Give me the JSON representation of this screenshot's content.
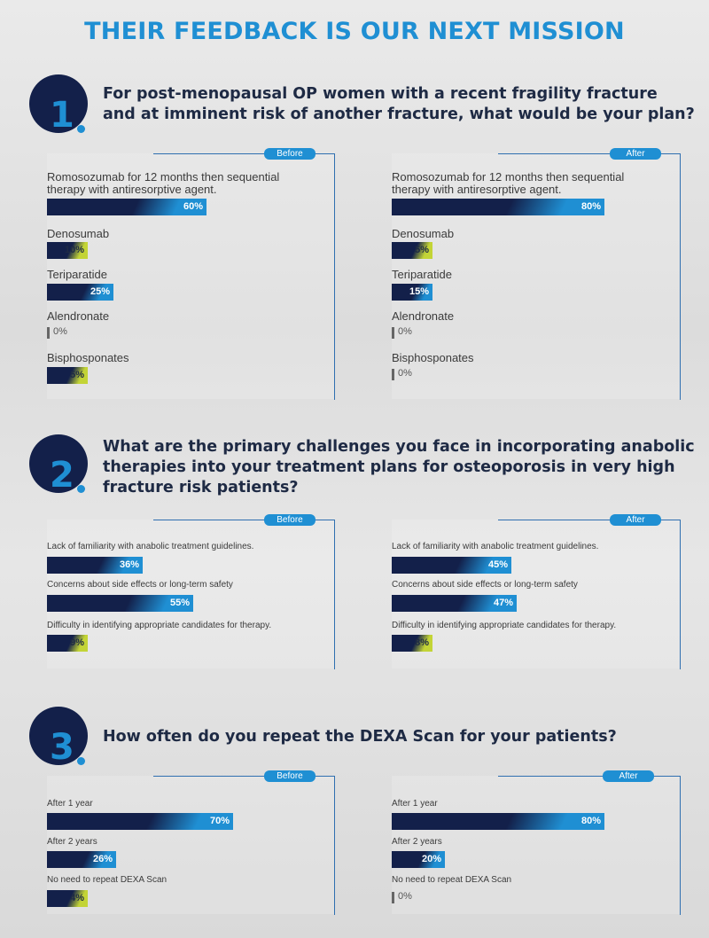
{
  "title": "THEIR FEEDBACK IS OUR NEXT MISSION",
  "colors": {
    "navy": "#13204a",
    "blue": "#1f8fd3",
    "lime": "#c3d436",
    "zero": "#666666"
  },
  "questions": [
    {
      "number": "1",
      "text": [
        "For post-menopausal OP women with a recent fragility fracture",
        "and at imminent risk of another fracture, what would be your plan?"
      ]
    },
    {
      "number": "2",
      "text": [
        "What are the primary challenges you face in incorporating anabolic",
        "therapies into your treatment plans for osteoporosis in very high",
        "fracture risk patients?"
      ]
    },
    {
      "number": "3",
      "text": [
        "How often do you repeat the DEXA Scan for your patients?"
      ]
    }
  ],
  "chart_data": [
    {
      "type": "bar",
      "question": 1,
      "panel": "Before",
      "unit": "%",
      "categories": [
        "Romosozumab for 12 months then sequential therapy with antiresorptive agent.",
        "Denosumab",
        "Teriparatide",
        "Alendronate",
        "Bisphosponates"
      ],
      "values": [
        60,
        10,
        25,
        0,
        5
      ],
      "xlim": [
        0,
        100
      ]
    },
    {
      "type": "bar",
      "question": 1,
      "panel": "After",
      "unit": "%",
      "categories": [
        "Romosozumab for 12 months then sequential therapy with antiresorptive agent.",
        "Denosumab",
        "Teriparatide",
        "Alendronate",
        "Bisphosponates"
      ],
      "values": [
        80,
        5,
        15,
        0,
        0
      ],
      "xlim": [
        0,
        100
      ]
    },
    {
      "type": "bar",
      "question": 2,
      "panel": "Before",
      "unit": "%",
      "categories": [
        "Lack of familiarity with anabolic treatment guidelines.",
        "Concerns about side effects or long-term safety",
        "Difficulty in identifying appropriate candidates for therapy."
      ],
      "values": [
        36,
        55,
        9
      ],
      "xlim": [
        0,
        100
      ]
    },
    {
      "type": "bar",
      "question": 2,
      "panel": "After",
      "unit": "%",
      "categories": [
        "Lack of familiarity with anabolic treatment guidelines.",
        "Concerns about side effects or long-term safety",
        "Difficulty in identifying appropriate candidates for therapy."
      ],
      "values": [
        45,
        47,
        8
      ],
      "xlim": [
        0,
        100
      ]
    },
    {
      "type": "bar",
      "question": 3,
      "panel": "Before",
      "unit": "%",
      "categories": [
        "After 1 year",
        "After 2 years",
        "No need to repeat DEXA Scan"
      ],
      "values": [
        70,
        26,
        4
      ],
      "xlim": [
        0,
        100
      ]
    },
    {
      "type": "bar",
      "question": 3,
      "panel": "After",
      "unit": "%",
      "categories": [
        "After 1 year",
        "After 2 years",
        "No need to repeat DEXA Scan"
      ],
      "values": [
        80,
        20,
        0
      ],
      "xlim": [
        0,
        100
      ]
    }
  ]
}
